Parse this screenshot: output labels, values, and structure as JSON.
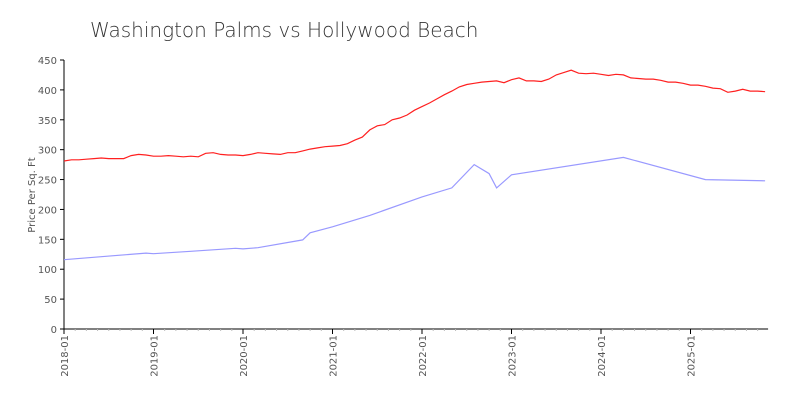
{
  "chart_data": {
    "type": "line",
    "title": "Washington Palms vs Hollywood Beach",
    "xlabel": "",
    "ylabel": "Price Per Sq. Ft",
    "ylim": [
      0,
      450
    ],
    "xlim": [
      "2018-01",
      "2025-11"
    ],
    "yticks": [
      0,
      50,
      100,
      150,
      200,
      250,
      300,
      350,
      400,
      450
    ],
    "xticks": [
      "2018-01",
      "2019-01",
      "2020-01",
      "2021-01",
      "2022-01",
      "2023-01",
      "2024-01",
      "2025-01"
    ],
    "grid": false,
    "legend": "none",
    "series": [
      {
        "name": "red-series",
        "color": "#ff2020",
        "start": "2018-01",
        "monthly_values": [
          281,
          283,
          283,
          284,
          285,
          286,
          285,
          285,
          285,
          290,
          292,
          291,
          289,
          289,
          290,
          289,
          288,
          289,
          288,
          294,
          295,
          292,
          291,
          291,
          290,
          292,
          295,
          294,
          293,
          292,
          295,
          295,
          298,
          301,
          303,
          305,
          306,
          307,
          310,
          316,
          321,
          333,
          340,
          342,
          350,
          353,
          358,
          366,
          372,
          378,
          385,
          392,
          398,
          405,
          409,
          411,
          413,
          414,
          415,
          412,
          417,
          420,
          415,
          415,
          414,
          418,
          425,
          429,
          433,
          428,
          427,
          428,
          426,
          424,
          426,
          425,
          420,
          419,
          418,
          418,
          416,
          413,
          413,
          411,
          408,
          408,
          406,
          403,
          402,
          396,
          398,
          401,
          398,
          398,
          397
        ]
      },
      {
        "name": "blue-series",
        "color": "#9999ff",
        "points": [
          [
            "2018-01",
            116
          ],
          [
            "2018-06",
            121
          ],
          [
            "2018-12",
            127
          ],
          [
            "2019-01",
            126
          ],
          [
            "2019-06",
            130
          ],
          [
            "2019-12",
            135
          ],
          [
            "2020-01",
            134
          ],
          [
            "2020-03",
            136
          ],
          [
            "2020-09",
            149
          ],
          [
            "2020-10",
            161
          ],
          [
            "2021-01",
            171
          ],
          [
            "2021-06",
            190
          ],
          [
            "2022-01",
            221
          ],
          [
            "2022-05",
            236
          ],
          [
            "2022-08",
            275
          ],
          [
            "2022-10",
            260
          ],
          [
            "2022-11",
            236
          ],
          [
            "2023-01",
            258
          ],
          [
            "2024-04",
            287
          ],
          [
            "2025-03",
            250
          ],
          [
            "2025-11",
            248
          ]
        ]
      }
    ]
  }
}
